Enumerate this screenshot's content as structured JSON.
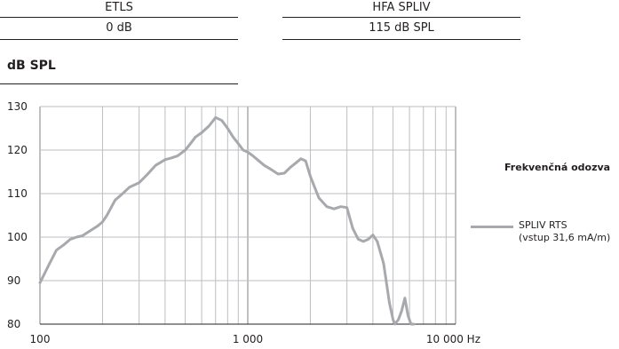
{
  "table": {
    "headers": [
      "ETLS",
      "HFA SPLIV"
    ],
    "values": [
      "0 dB",
      "115 dB SPL"
    ]
  },
  "chart_data": {
    "type": "line",
    "title": "",
    "ylabel": "dB SPL",
    "xlabel": "Hz",
    "x_scale": "log",
    "xlim": [
      100,
      10000
    ],
    "ylim": [
      80,
      130
    ],
    "grid": true,
    "y_ticks": [
      "130",
      "120",
      "110",
      "100",
      "90",
      "80"
    ],
    "x_ticks": [
      "100",
      "1 000",
      "10 000 Hz"
    ],
    "legend_title": "Frekvenčná odozva",
    "series": [
      {
        "name": "SPLIV RTS",
        "name_note": "(vstup 31,6 mA/m)",
        "color": "#a7a9ac",
        "x": [
          100,
          110,
          120,
          130,
          140,
          150,
          160,
          175,
          190,
          200,
          210,
          230,
          250,
          270,
          300,
          330,
          360,
          400,
          430,
          460,
          500,
          530,
          560,
          600,
          650,
          700,
          750,
          800,
          850,
          900,
          950,
          1000,
          1050,
          1100,
          1200,
          1300,
          1400,
          1500,
          1600,
          1700,
          1800,
          1900,
          2000,
          2200,
          2400,
          2600,
          2800,
          3000,
          3200,
          3400,
          3600,
          3800,
          4000,
          4200,
          4500,
          4800,
          5000,
          5100,
          5300,
          5500,
          5700,
          5900,
          6000,
          6100,
          6200,
          6300
        ],
        "values": [
          89.5,
          93.5,
          97,
          98.2,
          99.5,
          100,
          100.3,
          101.5,
          102.6,
          103.5,
          105,
          108.5,
          110,
          111.5,
          112.5,
          114.5,
          116.5,
          117.8,
          118.2,
          118.7,
          120,
          121.5,
          123,
          124,
          125.5,
          127.5,
          126.8,
          125,
          123,
          121.5,
          120,
          119.5,
          118.8,
          118,
          116.5,
          115.5,
          114.5,
          114.7,
          116,
          117,
          118,
          117.5,
          114,
          109,
          107,
          106.5,
          107,
          106.8,
          102,
          99.5,
          99,
          99.5,
          100.5,
          99,
          94,
          85,
          81,
          80,
          81,
          83,
          86,
          82,
          81,
          80,
          80,
          80
        ]
      }
    ]
  }
}
